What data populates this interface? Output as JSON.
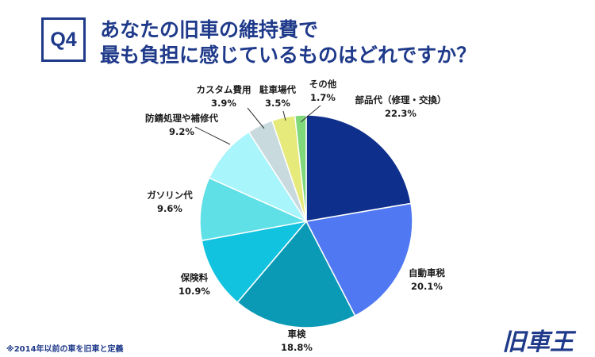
{
  "badge": "Q4",
  "title_lines": [
    "あなたの旧車の維持費で",
    "最も負担に感じているものはどれですか？"
  ],
  "footnote": "※2014年以前の車を旧車と定義",
  "logo_text": "旧車王",
  "colors": {
    "brand": "#1f3a8a",
    "text": "#1a1a1a",
    "leader": "#333333"
  },
  "chart_data": {
    "type": "pie",
    "start": "12 o'clock",
    "direction": "clockwise",
    "slices": [
      {
        "label": "部品代（修理・交換）",
        "value": 22.3,
        "value_label": "22.3%",
        "color": "#0f2f8c"
      },
      {
        "label": "自動車税",
        "value": 20.1,
        "value_label": "20.1%",
        "color": "#4f78f2"
      },
      {
        "label": "車検",
        "value": 18.8,
        "value_label": "18.8%",
        "color": "#0b9ab5"
      },
      {
        "label": "保険料",
        "value": 10.9,
        "value_label": "10.9%",
        "color": "#12c3e0"
      },
      {
        "label": "ガソリン代",
        "value": 9.6,
        "value_label": "9.6%",
        "color": "#5ee0e6"
      },
      {
        "label": "防錆処理や補修代",
        "value": 9.2,
        "value_label": "9.2%",
        "color": "#a8f5fb"
      },
      {
        "label": "カスタム費用",
        "value": 3.9,
        "value_label": "3.9%",
        "color": "#c9dade"
      },
      {
        "label": "駐車場代",
        "value": 3.5,
        "value_label": "3.5%",
        "color": "#e6ea7a"
      },
      {
        "label": "その他",
        "value": 1.7,
        "value_label": "1.7%",
        "color": "#7fd87a"
      }
    ]
  }
}
